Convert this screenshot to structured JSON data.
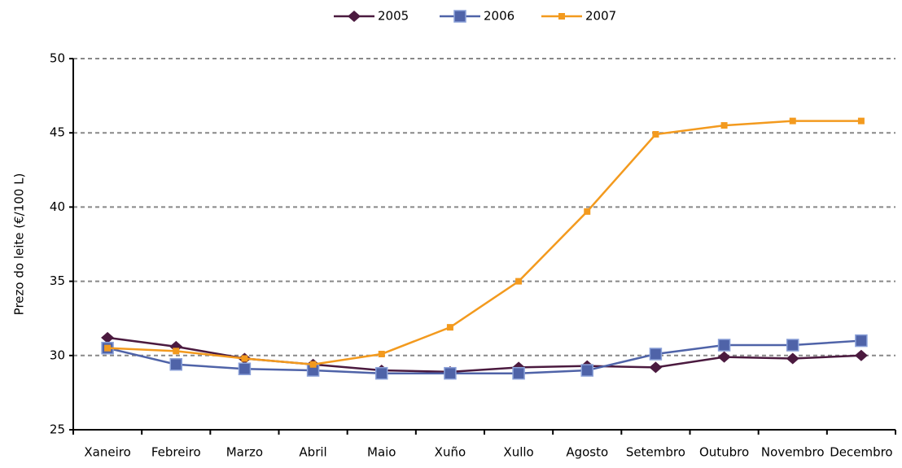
{
  "chart_data": {
    "type": "line",
    "ylabel": "Prezo do leite  (€/100 L)",
    "categories": [
      "Xaneiro",
      "Febreiro",
      "Marzo",
      "Abril",
      "Maio",
      "Xuño",
      "Xullo",
      "Agosto",
      "Setembro",
      "Outubro",
      "Novembro",
      "Decembro"
    ],
    "series": [
      {
        "name": "2005",
        "color": "#4b1a3f",
        "marker": "diamond",
        "values": [
          31.2,
          30.6,
          29.8,
          29.4,
          29.0,
          28.9,
          29.2,
          29.3,
          29.2,
          29.9,
          29.8,
          30.0
        ]
      },
      {
        "name": "2006",
        "color": "#4f63a8",
        "marker": "square",
        "values": [
          30.5,
          29.4,
          29.1,
          29.0,
          28.8,
          28.8,
          28.8,
          29.0,
          30.1,
          30.7,
          30.7,
          31.0
        ]
      },
      {
        "name": "2007",
        "color": "#f39a1e",
        "marker": "smallsquare",
        "values": [
          30.5,
          30.3,
          29.8,
          29.4,
          30.1,
          31.9,
          35.0,
          39.7,
          44.9,
          45.5,
          45.8,
          45.8
        ]
      }
    ],
    "ylim": [
      25,
      50
    ],
    "yticks": [
      25,
      30,
      35,
      40,
      45,
      50
    ],
    "grid": true,
    "legend": "top"
  }
}
